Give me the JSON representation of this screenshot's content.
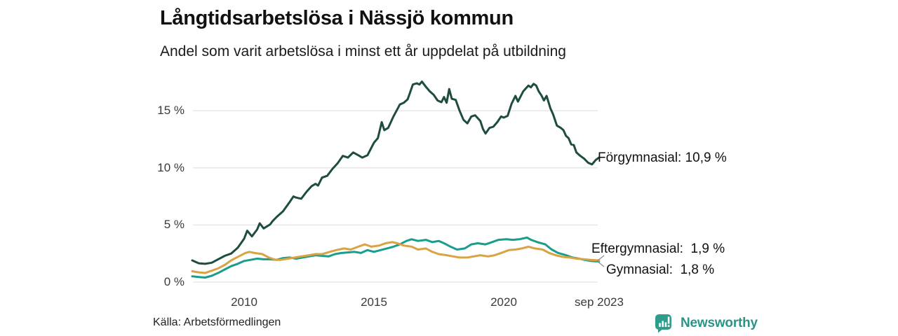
{
  "source": "Källa: Arbetsförmedlingen",
  "branding": {
    "label": "Newsworthy",
    "icon": "bar-chart-speech-bubble-icon",
    "color": "#2b9488"
  },
  "colors": {
    "background": "#ffffff",
    "grid": "#e4e4ea",
    "title_text": "#111111",
    "tick_text": "#3a3a3a",
    "connector": "#8a8a8a"
  },
  "chart_data": {
    "type": "line",
    "title": "Långtidsarbetslösa i Nässjö kommun",
    "subtitle": "Andel som varit arbetslösa i minst ett år uppdelat på utbildning",
    "unit": "%",
    "grid": true,
    "legend_position": "end-of-line-labels",
    "x_axis": {
      "range": [
        2008.0,
        2023.75
      ],
      "ticks": [
        {
          "t": 2010,
          "label": "2010"
        },
        {
          "t": 2015,
          "label": "2015"
        },
        {
          "t": 2020,
          "label": "2020"
        },
        {
          "t": 2023.67,
          "label": "sep 2023"
        }
      ]
    },
    "y_axis": {
      "range": [
        0,
        18
      ],
      "ticks": [
        {
          "v": 0,
          "label": "0 %"
        },
        {
          "v": 5,
          "label": "5 %"
        },
        {
          "v": 10,
          "label": "10 %"
        },
        {
          "v": 15,
          "label": "15 %"
        }
      ]
    },
    "series": [
      {
        "name": "Förgymnasial",
        "color": "#1e4c41",
        "end_value": 10.9,
        "end_label": "Förgymnasial: 10,9 %",
        "points": [
          [
            2008.0,
            1.9
          ],
          [
            2008.25,
            1.65
          ],
          [
            2008.5,
            1.6
          ],
          [
            2008.75,
            1.7
          ],
          [
            2009.0,
            2.0
          ],
          [
            2009.25,
            2.3
          ],
          [
            2009.5,
            2.5
          ],
          [
            2009.75,
            3.0
          ],
          [
            2010.0,
            3.8
          ],
          [
            2010.12,
            4.5
          ],
          [
            2010.3,
            4.0
          ],
          [
            2010.5,
            4.6
          ],
          [
            2010.6,
            5.15
          ],
          [
            2010.75,
            4.7
          ],
          [
            2011.0,
            5.05
          ],
          [
            2011.1,
            5.35
          ],
          [
            2011.25,
            5.7
          ],
          [
            2011.5,
            6.2
          ],
          [
            2011.75,
            7.0
          ],
          [
            2011.9,
            7.5
          ],
          [
            2012.0,
            7.4
          ],
          [
            2012.2,
            7.3
          ],
          [
            2012.4,
            7.9
          ],
          [
            2012.6,
            8.4
          ],
          [
            2012.75,
            8.6
          ],
          [
            2012.85,
            8.45
          ],
          [
            2013.0,
            9.15
          ],
          [
            2013.2,
            9.3
          ],
          [
            2013.4,
            9.9
          ],
          [
            2013.6,
            10.4
          ],
          [
            2013.8,
            11.05
          ],
          [
            2014.0,
            10.9
          ],
          [
            2014.2,
            11.35
          ],
          [
            2014.4,
            11.1
          ],
          [
            2014.55,
            10.9
          ],
          [
            2014.75,
            11.1
          ],
          [
            2015.0,
            12.2
          ],
          [
            2015.15,
            12.6
          ],
          [
            2015.3,
            14.0
          ],
          [
            2015.4,
            13.3
          ],
          [
            2015.55,
            13.5
          ],
          [
            2015.75,
            14.5
          ],
          [
            2016.0,
            15.55
          ],
          [
            2016.15,
            15.7
          ],
          [
            2016.3,
            16.0
          ],
          [
            2016.5,
            17.3
          ],
          [
            2016.65,
            17.4
          ],
          [
            2016.75,
            17.3
          ],
          [
            2016.85,
            17.55
          ],
          [
            2017.0,
            17.1
          ],
          [
            2017.15,
            16.7
          ],
          [
            2017.3,
            16.4
          ],
          [
            2017.45,
            15.9
          ],
          [
            2017.6,
            15.75
          ],
          [
            2017.7,
            16.2
          ],
          [
            2017.8,
            15.7
          ],
          [
            2017.9,
            16.9
          ],
          [
            2018.0,
            16.05
          ],
          [
            2018.15,
            15.95
          ],
          [
            2018.3,
            15.0
          ],
          [
            2018.45,
            14.2
          ],
          [
            2018.6,
            13.9
          ],
          [
            2018.75,
            14.5
          ],
          [
            2018.9,
            14.6
          ],
          [
            2019.1,
            14.1
          ],
          [
            2019.2,
            13.4
          ],
          [
            2019.3,
            13.0
          ],
          [
            2019.45,
            13.5
          ],
          [
            2019.6,
            13.6
          ],
          [
            2019.75,
            14.0
          ],
          [
            2019.9,
            14.5
          ],
          [
            2020.0,
            14.4
          ],
          [
            2020.15,
            14.55
          ],
          [
            2020.3,
            15.6
          ],
          [
            2020.45,
            16.3
          ],
          [
            2020.55,
            15.8
          ],
          [
            2020.75,
            16.7
          ],
          [
            2020.95,
            17.2
          ],
          [
            2021.05,
            17.05
          ],
          [
            2021.15,
            17.35
          ],
          [
            2021.25,
            17.2
          ],
          [
            2021.35,
            16.7
          ],
          [
            2021.45,
            16.35
          ],
          [
            2021.55,
            15.9
          ],
          [
            2021.65,
            16.3
          ],
          [
            2021.8,
            15.2
          ],
          [
            2021.9,
            14.7
          ],
          [
            2022.05,
            13.7
          ],
          [
            2022.2,
            13.5
          ],
          [
            2022.3,
            13.3
          ],
          [
            2022.4,
            12.8
          ],
          [
            2022.5,
            12.6
          ],
          [
            2022.6,
            12.05
          ],
          [
            2022.7,
            12.0
          ],
          [
            2022.8,
            11.35
          ],
          [
            2022.95,
            11.05
          ],
          [
            2023.1,
            10.8
          ],
          [
            2023.25,
            10.45
          ],
          [
            2023.4,
            10.3
          ],
          [
            2023.55,
            10.7
          ],
          [
            2023.67,
            10.9
          ]
        ]
      },
      {
        "name": "Eftergymnasial",
        "color": "#d9a343",
        "end_value": 1.9,
        "end_label": "Eftergymnasial:  1,9 %",
        "points": [
          [
            2008.0,
            0.95
          ],
          [
            2008.25,
            0.85
          ],
          [
            2008.5,
            0.8
          ],
          [
            2008.75,
            1.0
          ],
          [
            2009.0,
            1.2
          ],
          [
            2009.25,
            1.5
          ],
          [
            2009.5,
            1.9
          ],
          [
            2009.75,
            2.2
          ],
          [
            2010.05,
            2.55
          ],
          [
            2010.2,
            2.65
          ],
          [
            2010.4,
            2.55
          ],
          [
            2010.7,
            2.45
          ],
          [
            2010.95,
            2.15
          ],
          [
            2011.2,
            1.95
          ],
          [
            2011.4,
            1.95
          ],
          [
            2011.7,
            2.05
          ],
          [
            2011.95,
            2.15
          ],
          [
            2012.2,
            2.25
          ],
          [
            2012.5,
            2.35
          ],
          [
            2012.75,
            2.45
          ],
          [
            2013.0,
            2.45
          ],
          [
            2013.3,
            2.65
          ],
          [
            2013.55,
            2.8
          ],
          [
            2013.85,
            2.95
          ],
          [
            2014.1,
            2.85
          ],
          [
            2014.4,
            3.1
          ],
          [
            2014.65,
            3.3
          ],
          [
            2014.9,
            3.1
          ],
          [
            2015.2,
            3.2
          ],
          [
            2015.45,
            3.4
          ],
          [
            2015.7,
            3.5
          ],
          [
            2015.9,
            3.4
          ],
          [
            2016.15,
            3.2
          ],
          [
            2016.45,
            3.1
          ],
          [
            2016.7,
            2.85
          ],
          [
            2017.0,
            2.95
          ],
          [
            2017.25,
            2.65
          ],
          [
            2017.5,
            2.45
          ],
          [
            2017.8,
            2.35
          ],
          [
            2018.05,
            2.25
          ],
          [
            2018.3,
            2.15
          ],
          [
            2018.6,
            2.15
          ],
          [
            2018.85,
            2.25
          ],
          [
            2019.1,
            2.35
          ],
          [
            2019.4,
            2.25
          ],
          [
            2019.65,
            2.35
          ],
          [
            2019.9,
            2.55
          ],
          [
            2020.2,
            2.8
          ],
          [
            2020.45,
            2.85
          ],
          [
            2020.7,
            2.95
          ],
          [
            2020.95,
            3.1
          ],
          [
            2021.2,
            2.95
          ],
          [
            2021.5,
            2.85
          ],
          [
            2021.75,
            2.55
          ],
          [
            2022.0,
            2.35
          ],
          [
            2022.3,
            2.2
          ],
          [
            2022.55,
            2.15
          ],
          [
            2022.8,
            2.05
          ],
          [
            2023.1,
            2.0
          ],
          [
            2023.35,
            1.95
          ],
          [
            2023.67,
            1.9
          ]
        ]
      },
      {
        "name": "Gymnasial",
        "color": "#189e8a",
        "end_value": 1.8,
        "end_label": "Gymnasial:  1,8 %",
        "points": [
          [
            2008.0,
            0.5
          ],
          [
            2008.25,
            0.45
          ],
          [
            2008.5,
            0.4
          ],
          [
            2008.75,
            0.55
          ],
          [
            2009.0,
            0.8
          ],
          [
            2009.25,
            1.1
          ],
          [
            2009.5,
            1.4
          ],
          [
            2009.75,
            1.6
          ],
          [
            2010.0,
            1.85
          ],
          [
            2010.25,
            1.95
          ],
          [
            2010.5,
            2.05
          ],
          [
            2010.75,
            2.0
          ],
          [
            2011.0,
            2.0
          ],
          [
            2011.25,
            1.95
          ],
          [
            2011.5,
            2.1
          ],
          [
            2011.75,
            2.15
          ],
          [
            2012.0,
            2.05
          ],
          [
            2012.25,
            2.15
          ],
          [
            2012.5,
            2.25
          ],
          [
            2012.75,
            2.35
          ],
          [
            2013.0,
            2.3
          ],
          [
            2013.25,
            2.25
          ],
          [
            2013.5,
            2.45
          ],
          [
            2013.75,
            2.55
          ],
          [
            2014.0,
            2.6
          ],
          [
            2014.25,
            2.65
          ],
          [
            2014.5,
            2.55
          ],
          [
            2014.75,
            2.8
          ],
          [
            2015.0,
            2.65
          ],
          [
            2015.25,
            2.8
          ],
          [
            2015.5,
            2.95
          ],
          [
            2015.75,
            3.1
          ],
          [
            2016.0,
            3.3
          ],
          [
            2016.25,
            3.6
          ],
          [
            2016.45,
            3.75
          ],
          [
            2016.7,
            3.6
          ],
          [
            2017.0,
            3.7
          ],
          [
            2017.25,
            3.5
          ],
          [
            2017.5,
            3.6
          ],
          [
            2017.7,
            3.4
          ],
          [
            2017.95,
            3.1
          ],
          [
            2018.2,
            2.85
          ],
          [
            2018.5,
            2.95
          ],
          [
            2018.75,
            3.3
          ],
          [
            2019.0,
            3.4
          ],
          [
            2019.3,
            3.3
          ],
          [
            2019.55,
            3.5
          ],
          [
            2019.8,
            3.7
          ],
          [
            2020.1,
            3.75
          ],
          [
            2020.35,
            3.7
          ],
          [
            2020.6,
            3.75
          ],
          [
            2020.9,
            3.9
          ],
          [
            2021.05,
            3.7
          ],
          [
            2021.3,
            3.5
          ],
          [
            2021.6,
            3.3
          ],
          [
            2021.85,
            2.85
          ],
          [
            2022.1,
            2.55
          ],
          [
            2022.4,
            2.35
          ],
          [
            2022.65,
            2.15
          ],
          [
            2022.9,
            2.05
          ],
          [
            2023.1,
            1.95
          ],
          [
            2023.35,
            1.85
          ],
          [
            2023.67,
            1.8
          ]
        ]
      }
    ]
  }
}
